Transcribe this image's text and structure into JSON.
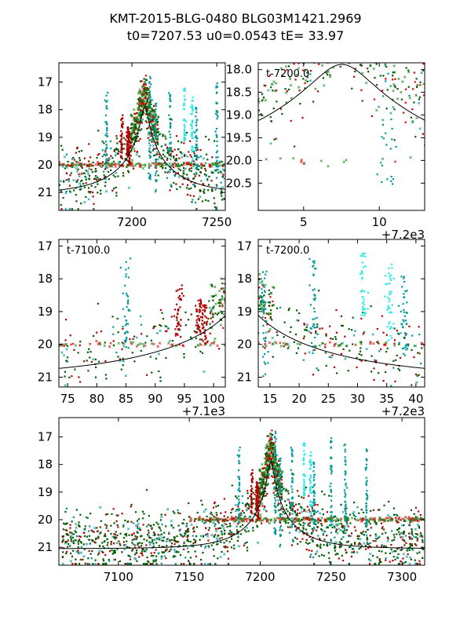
{
  "figure": {
    "title_line1": "KMT-2015-BLG-0480 BLG03M1421.2969",
    "title_line2": "t0=7207.53 u0=0.0543 tE=  33.97"
  },
  "model": {
    "t0": 7207.53,
    "u0": 0.0543,
    "tE": 33.97,
    "baseline": 21.05,
    "blend": 1.0
  },
  "colors": {
    "darkred": "#b00000",
    "red": "#e00000",
    "darkgreen": "#005a00",
    "green": "#1e8c1e",
    "teal": "#009999",
    "cyan": "#2ce8e8",
    "model": "#000000"
  },
  "chart_data": [
    {
      "type": "scatter",
      "name": "full-zoom-top-left",
      "xlim": [
        7157,
        7255
      ],
      "ylim": [
        21.65,
        16.3
      ],
      "xticks": [
        7200,
        7250
      ],
      "xtick_labels": [
        "7200",
        "7250"
      ],
      "yticks": [
        17,
        18,
        19,
        20,
        21
      ],
      "ytick_labels": [
        "17",
        "18",
        "19",
        "20",
        "21"
      ],
      "inner_label": "",
      "offset_label": ""
    },
    {
      "type": "scatter",
      "name": "peak-zoom-top-right",
      "xlim": [
        7202,
        7213
      ],
      "ylim": [
        21.1,
        17.85
      ],
      "xticks": [
        7205,
        7210
      ],
      "xtick_labels": [
        "5",
        "10"
      ],
      "yticks": [
        18.0,
        18.5,
        19.0,
        19.5,
        20.0,
        20.5
      ],
      "ytick_labels": [
        "18.0",
        "18.5",
        "19.0",
        "19.5",
        "20.0",
        "20.5"
      ],
      "inner_label": "t-7200.0",
      "offset_label": "+7.2e3"
    },
    {
      "type": "scatter",
      "name": "pre-peak-middle-left",
      "xlim": [
        7173.5,
        7202
      ],
      "ylim": [
        21.3,
        16.8
      ],
      "xticks": [
        7175,
        7180,
        7185,
        7190,
        7195,
        7200
      ],
      "xtick_labels": [
        "75",
        "80",
        "85",
        "90",
        "95",
        "100"
      ],
      "yticks": [
        17,
        18,
        19,
        20,
        21
      ],
      "ytick_labels": [
        "17",
        "18",
        "19",
        "20",
        "21"
      ],
      "inner_label": "t-7100.0",
      "offset_label": "+7.1e3"
    },
    {
      "type": "scatter",
      "name": "post-peak-middle-right",
      "xlim": [
        7213,
        7241.5
      ],
      "ylim": [
        21.3,
        16.8
      ],
      "xticks": [
        7215,
        7220,
        7225,
        7230,
        7235,
        7240
      ],
      "xtick_labels": [
        "15",
        "20",
        "25",
        "30",
        "35",
        "40"
      ],
      "yticks": [
        17,
        18,
        19,
        20,
        21
      ],
      "ytick_labels": [
        "17",
        "18",
        "19",
        "20",
        "21"
      ],
      "inner_label": "t-7200.0",
      "offset_label": "+7.2e3"
    },
    {
      "type": "scatter",
      "name": "season-bottom",
      "xlim": [
        7058,
        7316
      ],
      "ylim": [
        21.65,
        16.3
      ],
      "xticks": [
        7100,
        7150,
        7200,
        7250,
        7300
      ],
      "xtick_labels": [
        "7100",
        "7150",
        "7200",
        "7250",
        "7300"
      ],
      "yticks": [
        17,
        18,
        19,
        20,
        21
      ],
      "ytick_labels": [
        "17",
        "18",
        "19",
        "20",
        "21"
      ],
      "inner_label": "",
      "offset_label": ""
    }
  ]
}
